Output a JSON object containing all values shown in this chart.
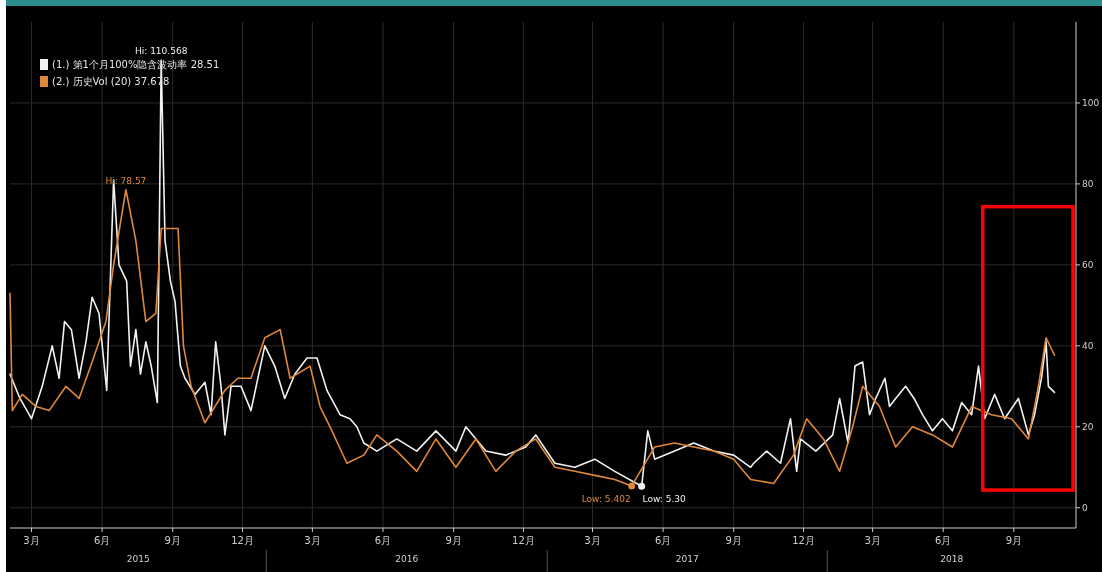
{
  "chart_data": {
    "type": "line",
    "xlim": [
      "2015-02-01",
      "2018-11-21"
    ],
    "ylim": [
      -5,
      120
    ],
    "xticks": [
      {
        "value": "2015-03-01",
        "label": "3月"
      },
      {
        "value": "2015-06-01",
        "label": "6月"
      },
      {
        "value": "2015-09-01",
        "label": "9月"
      },
      {
        "value": "2015-12-01",
        "label": "12月"
      },
      {
        "value": "2016-03-01",
        "label": "3月"
      },
      {
        "value": "2016-06-01",
        "label": "6月"
      },
      {
        "value": "2016-09-01",
        "label": "9月"
      },
      {
        "value": "2016-12-01",
        "label": "12月"
      },
      {
        "value": "2017-03-01",
        "label": "3月"
      },
      {
        "value": "2017-06-01",
        "label": "6月"
      },
      {
        "value": "2017-09-01",
        "label": "9月"
      },
      {
        "value": "2017-12-01",
        "label": "12月"
      },
      {
        "value": "2018-03-01",
        "label": "3月"
      },
      {
        "value": "2018-06-01",
        "label": "6月"
      },
      {
        "value": "2018-09-01",
        "label": "9月"
      }
    ],
    "yticks": [
      0,
      20,
      40,
      60,
      80,
      100
    ],
    "grid": true,
    "legend": "top left",
    "series": [
      {
        "name": "(1.) 第1个月100%隐含波动率 28.51",
        "color": "#f2f2f2",
        "x": [
          "2015-02-01",
          "2015-02-14",
          "2015-03-01",
          "2015-03-15",
          "2015-03-28",
          "2015-04-06",
          "2015-04-13",
          "2015-04-22",
          "2015-05-02",
          "2015-05-11",
          "2015-05-19",
          "2015-05-28",
          "2015-06-07",
          "2015-06-16",
          "2015-06-23",
          "2015-07-03",
          "2015-07-08",
          "2015-07-15",
          "2015-07-21",
          "2015-07-28",
          "2015-08-04",
          "2015-08-12",
          "2015-08-17",
          "2015-08-22",
          "2015-08-29",
          "2015-09-04",
          "2015-09-11",
          "2015-09-17",
          "2015-09-30",
          "2015-10-13",
          "2015-10-21",
          "2015-10-27",
          "2015-11-03",
          "2015-11-08",
          "2015-11-16",
          "2015-11-29",
          "2015-12-12",
          "2015-12-30",
          "2016-01-12",
          "2016-01-25",
          "2016-02-07",
          "2016-02-23",
          "2016-03-07",
          "2016-03-20",
          "2016-04-06",
          "2016-04-19",
          "2016-04-28",
          "2016-05-07",
          "2016-05-24",
          "2016-06-19",
          "2016-07-15",
          "2016-08-09",
          "2016-09-04",
          "2016-09-17",
          "2016-10-13",
          "2016-11-08",
          "2016-12-04",
          "2016-12-17",
          "2017-01-11",
          "2017-02-06",
          "2017-03-04",
          "2017-03-30",
          "2017-05-04",
          "2017-05-12",
          "2017-05-21",
          "2017-06-16",
          "2017-07-11",
          "2017-08-06",
          "2017-09-01",
          "2017-09-23",
          "2017-09-27",
          "2017-10-14",
          "2017-11-01",
          "2017-11-14",
          "2017-11-22",
          "2017-11-27",
          "2017-12-17",
          "2018-01-08",
          "2018-01-17",
          "2018-01-28",
          "2018-02-06",
          "2018-02-16",
          "2018-02-25",
          "2018-03-05",
          "2018-03-17",
          "2018-03-23",
          "2018-03-31",
          "2018-04-13",
          "2018-04-24",
          "2018-05-05",
          "2018-05-18",
          "2018-05-31",
          "2018-06-13",
          "2018-06-25",
          "2018-07-08",
          "2018-07-17",
          "2018-07-25",
          "2018-08-07",
          "2018-08-20",
          "2018-09-07",
          "2018-09-20",
          "2018-09-28",
          "2018-10-07",
          "2018-10-13",
          "2018-10-16",
          "2018-10-24"
        ],
        "values": [
          33,
          27,
          22,
          30,
          40,
          32,
          46,
          44,
          32,
          41,
          52,
          48,
          29,
          81,
          60,
          56,
          35,
          44,
          33,
          41,
          35,
          26,
          110.568,
          66,
          56,
          51,
          35,
          32,
          28,
          31,
          23,
          41,
          30,
          18,
          30,
          30,
          24,
          40,
          35,
          27,
          33,
          37,
          37,
          29,
          23,
          22,
          20,
          16,
          14,
          17,
          14,
          19,
          14,
          20,
          14,
          13,
          15,
          18,
          11,
          10,
          12,
          9,
          5.3,
          19,
          12,
          14,
          16,
          14,
          13,
          10,
          11,
          14,
          11,
          22,
          9,
          17,
          14,
          18,
          27,
          16,
          35,
          36,
          23,
          27,
          32,
          25,
          27,
          30,
          27,
          23,
          19,
          22,
          19,
          26,
          23,
          35,
          22,
          28,
          22,
          27,
          18,
          23,
          32,
          41,
          30,
          28.51
        ]
      },
      {
        "name": "(2.) 历史Vol (20) 37.678",
        "color": "#e0883a",
        "x": [
          "2015-02-01",
          "2015-02-04",
          "2015-02-17",
          "2015-03-07",
          "2015-03-24",
          "2015-04-15",
          "2015-05-02",
          "2015-05-19",
          "2015-06-06",
          "2015-06-16",
          "2015-07-02",
          "2015-07-15",
          "2015-07-28",
          "2015-08-10",
          "2015-08-17",
          "2015-09-08",
          "2015-09-15",
          "2015-09-25",
          "2015-10-13",
          "2015-11-08",
          "2015-11-25",
          "2015-12-12",
          "2015-12-30",
          "2016-01-19",
          "2016-02-01",
          "2016-02-27",
          "2016-03-11",
          "2016-03-24",
          "2016-04-15",
          "2016-05-07",
          "2016-05-24",
          "2016-06-19",
          "2016-07-15",
          "2016-08-09",
          "2016-09-04",
          "2016-09-30",
          "2016-10-26",
          "2016-11-21",
          "2016-12-17",
          "2017-01-11",
          "2017-02-06",
          "2017-03-04",
          "2017-03-30",
          "2017-04-21",
          "2017-05-21",
          "2017-06-16",
          "2017-07-11",
          "2017-08-06",
          "2017-09-01",
          "2017-09-23",
          "2017-10-23",
          "2017-11-18",
          "2017-12-05",
          "2017-12-27",
          "2018-01-17",
          "2018-02-03",
          "2018-02-16",
          "2018-03-10",
          "2018-03-31",
          "2018-04-22",
          "2018-05-18",
          "2018-06-13",
          "2018-07-08",
          "2018-08-03",
          "2018-08-29",
          "2018-09-20",
          "2018-10-03",
          "2018-10-13",
          "2018-10-24"
        ],
        "values": [
          53,
          24,
          28,
          25,
          24,
          30,
          27,
          36,
          46,
          60,
          78.57,
          66,
          46,
          48,
          69,
          69,
          40,
          30,
          21,
          29,
          32,
          32,
          42,
          44,
          32,
          35,
          25,
          20,
          11,
          13,
          18,
          14,
          9,
          17,
          10,
          17,
          9,
          14,
          17,
          10,
          9,
          8,
          7,
          5.402,
          15,
          16,
          15,
          14,
          12,
          7,
          6,
          13,
          22,
          17,
          9,
          20,
          30,
          25,
          15,
          20,
          18,
          15,
          25,
          23,
          22,
          17,
          30,
          42,
          37.678
        ]
      }
    ],
    "annotations": [
      {
        "text": "Hi: 110.568",
        "x": "2015-08-17",
        "y": 110.568
      },
      {
        "text": "Hi: 78.57",
        "x": "2015-07-02",
        "y": 78.57
      },
      {
        "text": "Low: 5.402",
        "x": "2017-04-21",
        "y": 5.402
      },
      {
        "text": "Low: 5.30",
        "x": "2017-05-04",
        "y": 5.3
      },
      "2015",
      "2016",
      "2017",
      "2018"
    ]
  }
}
